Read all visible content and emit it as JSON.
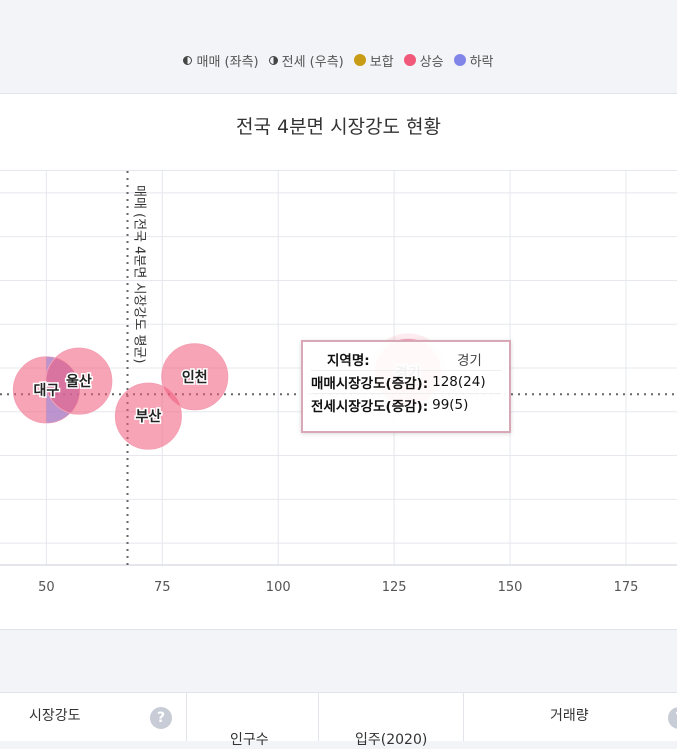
{
  "legend": {
    "items": [
      {
        "label": "매매 (좌측)",
        "icon": "half-circle-left-icon"
      },
      {
        "label": "전세 (우측)",
        "icon": "half-circle-right-icon"
      },
      {
        "label": "보합",
        "color": "#c89c14"
      },
      {
        "label": "상승",
        "color": "#f0597a"
      },
      {
        "label": "하락",
        "color": "#8185e8"
      }
    ]
  },
  "chart_data": {
    "type": "bubble",
    "title": "전국 4분면 시장강도 현황",
    "xlim": [
      40,
      186
    ],
    "ylim": [
      55,
      145
    ],
    "x_ticks": [
      50,
      75,
      100,
      125,
      150,
      175
    ],
    "reference_lines": {
      "vertical_x": 67.5,
      "vertical_label": "매매 (전국 4분면 시장강도 평균)",
      "horizontal_y": 94
    },
    "points": [
      {
        "name": "대구",
        "x": 50,
        "y": 95,
        "status": "상승",
        "secondary_status": "하락"
      },
      {
        "name": "울산",
        "x": 57,
        "y": 97,
        "status": "상승"
      },
      {
        "name": "부산",
        "x": 72,
        "y": 89,
        "status": "상승"
      },
      {
        "name": "인천",
        "x": 82,
        "y": 98,
        "status": "상승"
      },
      {
        "name": "경기",
        "x": 128,
        "y": 99,
        "status": "상승",
        "highlighted": true
      }
    ]
  },
  "tooltip": {
    "rows": [
      {
        "key": "지역명:",
        "value": "경기"
      },
      {
        "key": "매매시장강도(증감):",
        "value": "128(24)"
      },
      {
        "key": "전세시장강도(증감):",
        "value": "99(5)"
      }
    ]
  },
  "table_header": {
    "col1": "시장강도",
    "col2": "인구수",
    "col3": "입주(2020)",
    "col4": "거래량",
    "help": "?"
  },
  "colors": {
    "rise": "#f0597a",
    "fall": "#8185e8",
    "flat": "#c89c14"
  }
}
